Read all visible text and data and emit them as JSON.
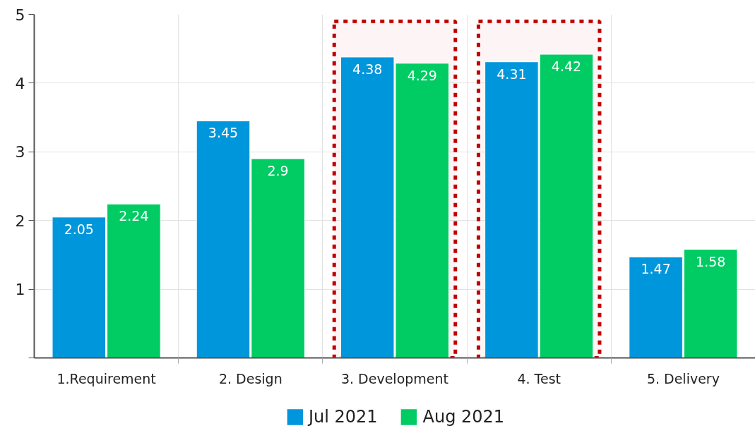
{
  "chart_data": {
    "type": "bar",
    "categories": [
      "1.Requirement",
      "2. Design",
      "3. Development",
      "4. Test",
      "5. Delivery"
    ],
    "series": [
      {
        "name": "Jul 2021",
        "color": "#0096db",
        "values": [
          2.05,
          3.45,
          4.38,
          4.31,
          1.47
        ]
      },
      {
        "name": "Aug 2021",
        "color": "#00cc63",
        "values": [
          2.24,
          2.9,
          4.29,
          4.42,
          1.58
        ]
      }
    ],
    "ylim": [
      0,
      5
    ],
    "yticks": [
      {
        "value": 0,
        "label": null
      },
      1,
      2,
      3,
      4,
      5
    ],
    "grid": true,
    "legend": "bottom",
    "data_labels": true,
    "bands": [
      {
        "axis": "x",
        "from": "3. Development",
        "to": "3. Development",
        "color": "#c00000"
      },
      {
        "axis": "x",
        "from": "4. Test",
        "to": "4. Test",
        "color": "#c00000"
      }
    ]
  }
}
